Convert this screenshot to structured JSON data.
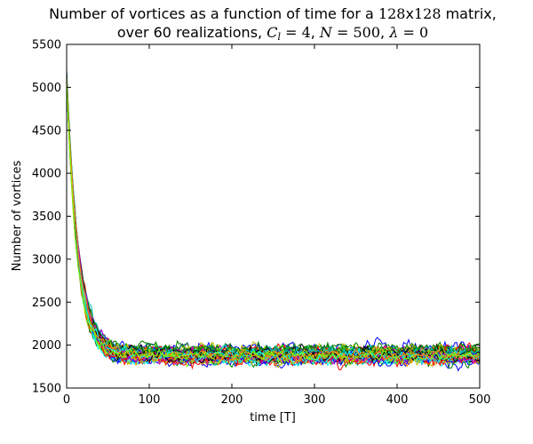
{
  "chart_data": {
    "type": "line",
    "title_line1": {
      "before": "Number of vortices as a function of time for a ",
      "math1": "128",
      "x": "x",
      "math2": "128",
      "after": " matrix,"
    },
    "title_line2": {
      "before": "over 60    realizations, ",
      "cl_sym": "C",
      "cl_sub": "l",
      "cl_val": " = 4",
      "sep1": ", ",
      "n_sym": "N",
      "n_val": " = 500",
      "sep2": ", ",
      "lambda_sym": "λ",
      "lambda_val": " = 0"
    },
    "xlabel": "time [T]",
    "ylabel": "Number of vortices",
    "xlim": [
      0,
      500
    ],
    "ylim": [
      1500,
      5500
    ],
    "xticks": [
      0,
      100,
      200,
      300,
      400,
      500
    ],
    "yticks": [
      1500,
      2000,
      2500,
      3000,
      3500,
      4000,
      4500,
      5000,
      5500
    ],
    "grid": false,
    "num_realizations": 60,
    "model": {
      "initial": 5100,
      "plateau": 1880,
      "decay_time": 14,
      "noise_amplitude": 60,
      "x_step": 2
    },
    "series_colors": [
      "#0000ff",
      "#008000",
      "#ff0000",
      "#00bfbf",
      "#bf00bf",
      "#bfbf00",
      "#000000",
      "#00ffff",
      "#ff8c00",
      "#7cfc00"
    ]
  }
}
